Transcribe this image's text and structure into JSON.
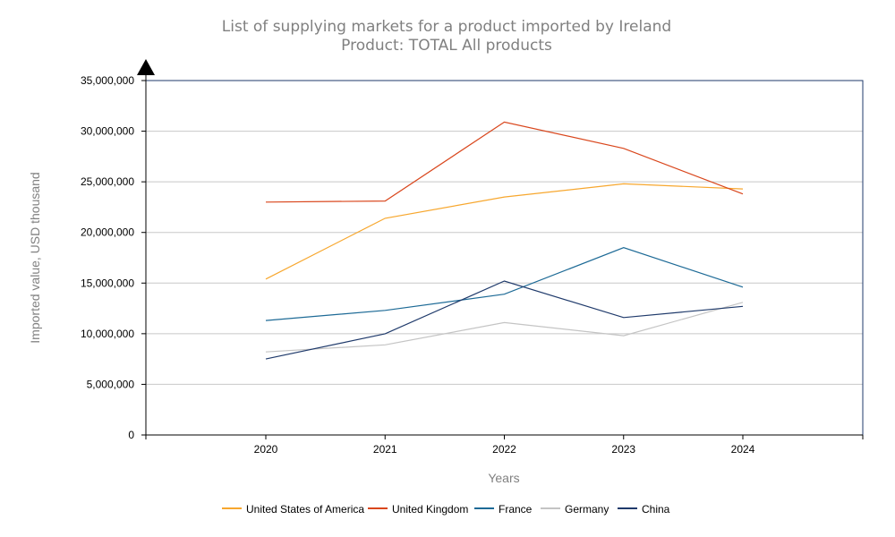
{
  "chart_data": {
    "type": "line",
    "title": "List of supplying markets for a product imported by Ireland",
    "subtitle": "Product: TOTAL All products",
    "xlabel": "Years",
    "ylabel": "Imported value, USD thousand",
    "categories": [
      "2020",
      "2021",
      "2022",
      "2023",
      "2024"
    ],
    "ylim": [
      0,
      35000000
    ],
    "yticks": [
      0,
      5000000,
      10000000,
      15000000,
      20000000,
      25000000,
      30000000,
      35000000
    ],
    "ytick_labels": [
      "0",
      "5,000,000",
      "10,000,000",
      "15,000,000",
      "20,000,000",
      "25,000,000",
      "30,000,000",
      "35,000,000"
    ],
    "grid": true,
    "legend_position": "bottom",
    "series": [
      {
        "name": "United States of America",
        "color": "#f7a72e",
        "values": [
          15400000,
          21400000,
          23500000,
          24800000,
          24300000
        ]
      },
      {
        "name": "United Kingdom",
        "color": "#d9461c",
        "values": [
          23000000,
          23100000,
          30900000,
          28300000,
          23800000
        ]
      },
      {
        "name": "France",
        "color": "#1d6a96",
        "values": [
          11300000,
          12300000,
          13900000,
          18500000,
          14600000
        ]
      },
      {
        "name": "Germany",
        "color": "#c4c4c4",
        "values": [
          8200000,
          8900000,
          11100000,
          9800000,
          13100000
        ]
      },
      {
        "name": "China",
        "color": "#1f3a6b",
        "values": [
          7500000,
          10000000,
          15200000,
          11600000,
          12700000
        ]
      }
    ]
  }
}
